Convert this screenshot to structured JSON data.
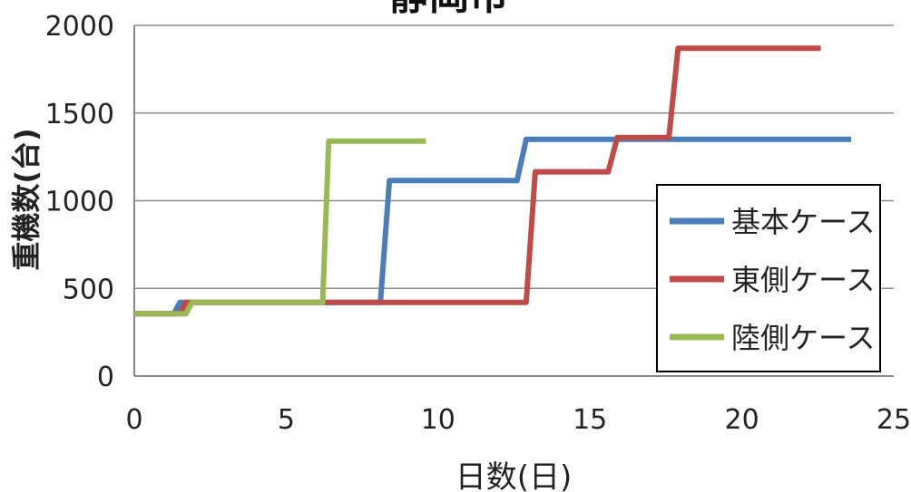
{
  "chart_data": {
    "type": "line",
    "title": "静岡市",
    "xlabel": "日数(日)",
    "ylabel": "重機数(台)",
    "xlim": [
      0,
      25
    ],
    "ylim": [
      0,
      2000
    ],
    "xticks": [
      0,
      5,
      10,
      15,
      20,
      25
    ],
    "yticks": [
      0,
      500,
      1000,
      1500,
      2000
    ],
    "grid": "horizontal",
    "legend_position": "right",
    "series": [
      {
        "name": "基本ケース",
        "color": "#4a7ebb",
        "points": [
          [
            0,
            355
          ],
          [
            1.3,
            355
          ],
          [
            1.5,
            420
          ],
          [
            8.1,
            420
          ],
          [
            8.4,
            1115
          ],
          [
            12.6,
            1115
          ],
          [
            12.9,
            1350
          ],
          [
            23.6,
            1350
          ]
        ]
      },
      {
        "name": "東側ケース",
        "color": "#be4b48",
        "points": [
          [
            0,
            355
          ],
          [
            1.5,
            355
          ],
          [
            1.7,
            420
          ],
          [
            12.9,
            420
          ],
          [
            13.2,
            1165
          ],
          [
            15.6,
            1165
          ],
          [
            15.9,
            1360
          ],
          [
            17.6,
            1360
          ],
          [
            17.9,
            1870
          ],
          [
            22.6,
            1870
          ]
        ]
      },
      {
        "name": "陸側ケース",
        "color": "#98b954",
        "points": [
          [
            0,
            355
          ],
          [
            1.7,
            355
          ],
          [
            1.9,
            420
          ],
          [
            6.2,
            420
          ],
          [
            6.4,
            1340
          ],
          [
            9.6,
            1340
          ]
        ]
      }
    ]
  }
}
